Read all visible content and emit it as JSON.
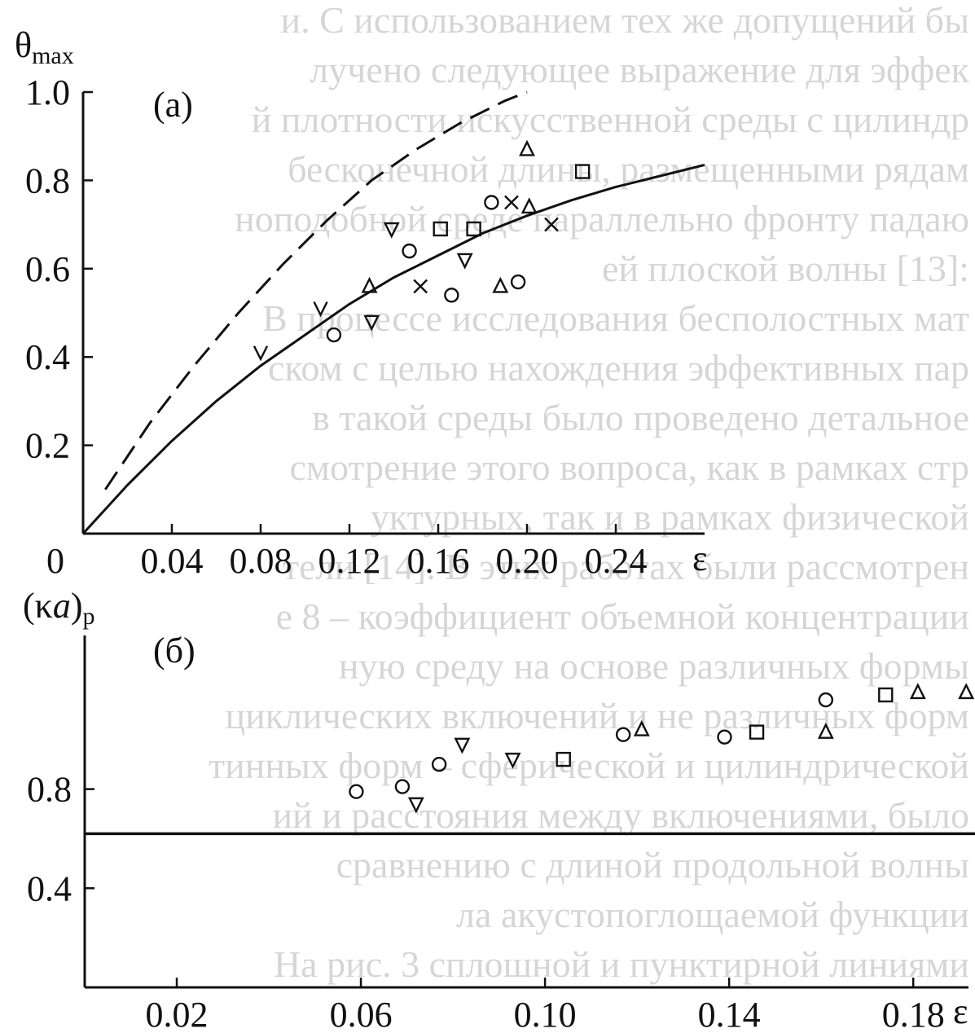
{
  "background_text": [
    "и. С использованием тех же допущений бы",
    "лучено следующее выражение для эффек",
    "й плотности искусственной среды с цилиндр",
    "бесконечной длины, размещенными рядам",
    "ноподобной среде параллельно фронту падаю",
    "ей плоской волны [13]:",
    "В процессе исследования бесполостных мат",
    "ском с целью нахождения эффективных пар",
    "в такой среды было проведено детальное",
    "смотрение этого вопроса, как в рамках стр",
    "уктурных, так и в рамках физической",
    "тели [14]. В этих работах были рассмотрен",
    "е 8 – коэффициент объемной концентрации",
    "ную среду на основе различных формы",
    "циклических включений и не различных форм",
    "тинных форм – сферической и цилиндрической",
    "ий и расстояния между включениями, было",
    "сравнению с длиной продольной волны",
    "ла акустопоглощаемой функции",
    "На рис. 3 сплошной и пунктирной линиями"
  ],
  "chart_data": [
    {
      "panel_label": "(a)",
      "type": "scatter",
      "ylabel": "θmax",
      "xlabel": "ε",
      "origin_label": "0",
      "xlim": [
        0,
        0.28
      ],
      "ylim": [
        0,
        1.0
      ],
      "x_ticks": [
        0.04,
        0.08,
        0.12,
        0.16,
        0.2,
        0.24
      ],
      "x_tick_labels": [
        "0.04",
        "0.08",
        "0.12",
        "0.16",
        "0.20",
        "0.24"
      ],
      "y_ticks": [
        0.2,
        0.4,
        0.6,
        0.8,
        1.0
      ],
      "y_tick_labels": [
        "0.2",
        "0.4",
        "0.6",
        "0.8",
        "1.0"
      ],
      "curves": [
        {
          "style": "solid",
          "x": [
            0,
            0.02,
            0.04,
            0.06,
            0.08,
            0.1,
            0.12,
            0.14,
            0.16,
            0.18,
            0.2,
            0.22,
            0.24,
            0.26,
            0.28
          ],
          "y": [
            0,
            0.11,
            0.21,
            0.3,
            0.38,
            0.45,
            0.52,
            0.58,
            0.63,
            0.68,
            0.72,
            0.755,
            0.785,
            0.81,
            0.835
          ]
        },
        {
          "style": "dashed",
          "x": [
            0.01,
            0.03,
            0.05,
            0.07,
            0.09,
            0.11,
            0.13,
            0.15,
            0.17,
            0.19,
            0.2
          ],
          "y": [
            0.1,
            0.25,
            0.38,
            0.5,
            0.61,
            0.71,
            0.8,
            0.87,
            0.93,
            0.98,
            1.0
          ]
        }
      ],
      "markers": [
        {
          "symbol": "v",
          "x": 0.08,
          "y": 0.41
        },
        {
          "symbol": "v",
          "x": 0.107,
          "y": 0.51
        },
        {
          "symbol": "circle",
          "x": 0.113,
          "y": 0.45
        },
        {
          "symbol": "triangle-up",
          "x": 0.129,
          "y": 0.56
        },
        {
          "symbol": "triangle-down",
          "x": 0.13,
          "y": 0.48
        },
        {
          "symbol": "triangle-down",
          "x": 0.139,
          "y": 0.69
        },
        {
          "symbol": "circle",
          "x": 0.147,
          "y": 0.64
        },
        {
          "symbol": "cross",
          "x": 0.152,
          "y": 0.56
        },
        {
          "symbol": "square",
          "x": 0.161,
          "y": 0.69
        },
        {
          "symbol": "circle",
          "x": 0.166,
          "y": 0.54
        },
        {
          "symbol": "triangle-down",
          "x": 0.172,
          "y": 0.62
        },
        {
          "symbol": "square",
          "x": 0.176,
          "y": 0.69
        },
        {
          "symbol": "circle",
          "x": 0.184,
          "y": 0.75
        },
        {
          "symbol": "triangle-up",
          "x": 0.188,
          "y": 0.56
        },
        {
          "symbol": "cross",
          "x": 0.193,
          "y": 0.75
        },
        {
          "symbol": "circle",
          "x": 0.196,
          "y": 0.57
        },
        {
          "symbol": "triangle-up",
          "x": 0.201,
          "y": 0.74
        },
        {
          "symbol": "triangle-up",
          "x": 0.2,
          "y": 0.87
        },
        {
          "symbol": "cross",
          "x": 0.211,
          "y": 0.7
        },
        {
          "symbol": "square",
          "x": 0.225,
          "y": 0.82
        }
      ]
    },
    {
      "panel_label": "(б)",
      "type": "scatter",
      "ylabel": "(κa)p",
      "xlabel": "ε",
      "xlim": [
        0.0,
        0.192
      ],
      "ylim": [
        0.0,
        1.42
      ],
      "x_ticks": [
        0.02,
        0.06,
        0.1,
        0.14,
        0.18
      ],
      "x_tick_labels": [
        "0.02",
        "0.06",
        "0.10",
        "0.14",
        "0.18"
      ],
      "y_ticks": [
        0.4,
        0.8
      ],
      "y_tick_labels": [
        "0.4",
        "0.8"
      ],
      "reference_line": {
        "y": 0.62,
        "style": "solid"
      },
      "markers": [
        {
          "symbol": "circle",
          "x": 0.059,
          "y": 0.79
        },
        {
          "symbol": "circle",
          "x": 0.069,
          "y": 0.81
        },
        {
          "symbol": "triangle-down",
          "x": 0.072,
          "y": 0.74
        },
        {
          "symbol": "circle",
          "x": 0.077,
          "y": 0.9
        },
        {
          "symbol": "triangle-down",
          "x": 0.082,
          "y": 0.98
        },
        {
          "symbol": "triangle-down",
          "x": 0.093,
          "y": 0.92
        },
        {
          "symbol": "square",
          "x": 0.104,
          "y": 0.92
        },
        {
          "symbol": "circle",
          "x": 0.117,
          "y": 1.02
        },
        {
          "symbol": "triangle-up",
          "x": 0.121,
          "y": 1.04
        },
        {
          "symbol": "circle",
          "x": 0.139,
          "y": 1.01
        },
        {
          "symbol": "square",
          "x": 0.146,
          "y": 1.03
        },
        {
          "symbol": "triangle-up",
          "x": 0.161,
          "y": 1.03
        },
        {
          "symbol": "circle",
          "x": 0.161,
          "y": 1.16
        },
        {
          "symbol": "square",
          "x": 0.174,
          "y": 1.18
        },
        {
          "symbol": "triangle-up",
          "x": 0.181,
          "y": 1.19
        },
        {
          "symbol": "triangle-up",
          "x": 0.1915,
          "y": 1.19
        }
      ]
    }
  ]
}
